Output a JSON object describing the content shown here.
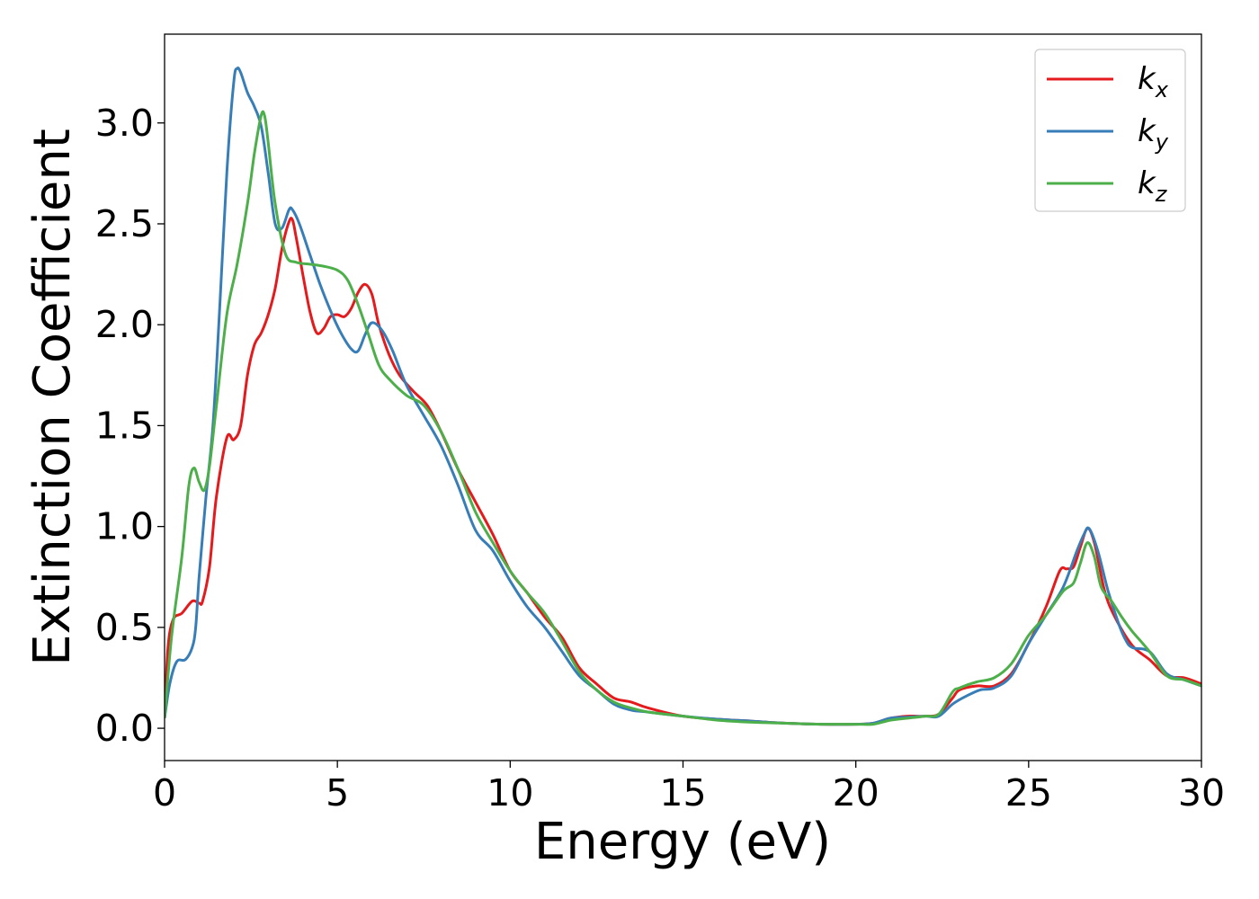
{
  "chart_data": {
    "type": "line",
    "title": "",
    "xlabel": "Energy (eV)",
    "ylabel": "Extinction Coefficient",
    "xlim": [
      0,
      30
    ],
    "ylim": [
      -0.16,
      3.44
    ],
    "xticks": [
      0,
      5,
      10,
      15,
      20,
      25,
      30
    ],
    "xtick_labels": [
      "0",
      "5",
      "10",
      "15",
      "20",
      "25",
      "30"
    ],
    "yticks": [
      0.0,
      0.5,
      1.0,
      1.5,
      2.0,
      2.5,
      3.0
    ],
    "ytick_labels": [
      "0.0",
      "0.5",
      "1.0",
      "1.5",
      "2.0",
      "2.5",
      "3.0"
    ],
    "grid": false,
    "legend_position": "top-right",
    "series": [
      {
        "name": "k",
        "subscript": "x",
        "color": "#e41a1c",
        "points": [
          [
            0,
            0.05
          ],
          [
            0.1,
            0.4
          ],
          [
            0.25,
            0.54
          ],
          [
            0.5,
            0.57
          ],
          [
            0.8,
            0.63
          ],
          [
            1.0,
            0.62
          ],
          [
            1.1,
            0.63
          ],
          [
            1.3,
            0.8
          ],
          [
            1.5,
            1.15
          ],
          [
            1.8,
            1.44
          ],
          [
            2.0,
            1.43
          ],
          [
            2.2,
            1.5
          ],
          [
            2.4,
            1.75
          ],
          [
            2.6,
            1.9
          ],
          [
            2.8,
            1.96
          ],
          [
            3.0,
            2.05
          ],
          [
            3.2,
            2.18
          ],
          [
            3.4,
            2.38
          ],
          [
            3.6,
            2.51
          ],
          [
            3.7,
            2.52
          ],
          [
            3.8,
            2.44
          ],
          [
            4.0,
            2.25
          ],
          [
            4.2,
            2.07
          ],
          [
            4.4,
            1.96
          ],
          [
            4.6,
            1.98
          ],
          [
            4.8,
            2.04
          ],
          [
            5.0,
            2.05
          ],
          [
            5.2,
            2.04
          ],
          [
            5.4,
            2.08
          ],
          [
            5.6,
            2.16
          ],
          [
            5.8,
            2.2
          ],
          [
            6.0,
            2.15
          ],
          [
            6.2,
            2.0
          ],
          [
            6.5,
            1.85
          ],
          [
            6.8,
            1.75
          ],
          [
            7.2,
            1.67
          ],
          [
            7.6,
            1.6
          ],
          [
            8.0,
            1.47
          ],
          [
            8.5,
            1.28
          ],
          [
            9.0,
            1.12
          ],
          [
            9.5,
            0.96
          ],
          [
            10.0,
            0.78
          ],
          [
            10.5,
            0.67
          ],
          [
            11.0,
            0.55
          ],
          [
            11.5,
            0.45
          ],
          [
            12.0,
            0.3
          ],
          [
            12.5,
            0.22
          ],
          [
            13.0,
            0.15
          ],
          [
            13.5,
            0.13
          ],
          [
            14.0,
            0.1
          ],
          [
            15.0,
            0.06
          ],
          [
            16.0,
            0.045
          ],
          [
            17.0,
            0.035
          ],
          [
            18.0,
            0.025
          ],
          [
            19.0,
            0.02
          ],
          [
            20.0,
            0.02
          ],
          [
            20.5,
            0.025
          ],
          [
            21.0,
            0.05
          ],
          [
            21.5,
            0.06
          ],
          [
            22.0,
            0.06
          ],
          [
            22.4,
            0.07
          ],
          [
            22.8,
            0.15
          ],
          [
            23.0,
            0.19
          ],
          [
            23.5,
            0.21
          ],
          [
            24.0,
            0.21
          ],
          [
            24.5,
            0.27
          ],
          [
            25.0,
            0.42
          ],
          [
            25.5,
            0.6
          ],
          [
            25.9,
            0.78
          ],
          [
            26.1,
            0.79
          ],
          [
            26.3,
            0.8
          ],
          [
            26.5,
            0.9
          ],
          [
            26.7,
            0.99
          ],
          [
            26.9,
            0.92
          ],
          [
            27.2,
            0.68
          ],
          [
            27.5,
            0.55
          ],
          [
            28.0,
            0.41
          ],
          [
            28.5,
            0.34
          ],
          [
            29.0,
            0.26
          ],
          [
            29.5,
            0.25
          ],
          [
            30.0,
            0.22
          ]
        ]
      },
      {
        "name": "k",
        "subscript": "y",
        "color": "#377eb8",
        "points": [
          [
            0,
            0.05
          ],
          [
            0.15,
            0.22
          ],
          [
            0.35,
            0.33
          ],
          [
            0.6,
            0.34
          ],
          [
            0.8,
            0.4
          ],
          [
            0.9,
            0.5
          ],
          [
            1.0,
            0.75
          ],
          [
            1.2,
            1.15
          ],
          [
            1.4,
            1.5
          ],
          [
            1.6,
            2.1
          ],
          [
            1.8,
            2.75
          ],
          [
            2.0,
            3.2
          ],
          [
            2.1,
            3.27
          ],
          [
            2.2,
            3.25
          ],
          [
            2.4,
            3.15
          ],
          [
            2.6,
            3.08
          ],
          [
            2.8,
            2.98
          ],
          [
            3.0,
            2.75
          ],
          [
            3.2,
            2.5
          ],
          [
            3.4,
            2.48
          ],
          [
            3.6,
            2.57
          ],
          [
            3.7,
            2.57
          ],
          [
            3.9,
            2.5
          ],
          [
            4.2,
            2.35
          ],
          [
            4.5,
            2.2
          ],
          [
            4.8,
            2.07
          ],
          [
            5.1,
            1.96
          ],
          [
            5.4,
            1.88
          ],
          [
            5.6,
            1.87
          ],
          [
            5.8,
            1.95
          ],
          [
            6.0,
            2.01
          ],
          [
            6.3,
            1.97
          ],
          [
            6.6,
            1.87
          ],
          [
            7.0,
            1.7
          ],
          [
            7.5,
            1.55
          ],
          [
            8.0,
            1.4
          ],
          [
            8.5,
            1.2
          ],
          [
            9.0,
            0.98
          ],
          [
            9.5,
            0.88
          ],
          [
            10.0,
            0.73
          ],
          [
            10.5,
            0.6
          ],
          [
            11.0,
            0.5
          ],
          [
            11.5,
            0.38
          ],
          [
            12.0,
            0.26
          ],
          [
            12.5,
            0.19
          ],
          [
            13.0,
            0.12
          ],
          [
            13.5,
            0.09
          ],
          [
            14.0,
            0.08
          ],
          [
            15.0,
            0.06
          ],
          [
            16.0,
            0.045
          ],
          [
            17.0,
            0.035
          ],
          [
            18.0,
            0.025
          ],
          [
            19.0,
            0.02
          ],
          [
            20.0,
            0.02
          ],
          [
            20.5,
            0.025
          ],
          [
            21.0,
            0.05
          ],
          [
            21.5,
            0.055
          ],
          [
            22.0,
            0.06
          ],
          [
            22.4,
            0.06
          ],
          [
            22.8,
            0.12
          ],
          [
            23.2,
            0.16
          ],
          [
            23.6,
            0.19
          ],
          [
            24.0,
            0.2
          ],
          [
            24.5,
            0.26
          ],
          [
            25.0,
            0.42
          ],
          [
            25.5,
            0.56
          ],
          [
            26.0,
            0.7
          ],
          [
            26.4,
            0.88
          ],
          [
            26.6,
            0.96
          ],
          [
            26.75,
            0.99
          ],
          [
            27.0,
            0.88
          ],
          [
            27.3,
            0.68
          ],
          [
            27.6,
            0.52
          ],
          [
            27.8,
            0.44
          ],
          [
            28.0,
            0.4
          ],
          [
            28.5,
            0.38
          ],
          [
            29.0,
            0.27
          ],
          [
            29.5,
            0.24
          ],
          [
            30.0,
            0.21
          ]
        ]
      },
      {
        "name": "k",
        "subscript": "z",
        "color": "#4daf4a",
        "points": [
          [
            0,
            0.05
          ],
          [
            0.2,
            0.45
          ],
          [
            0.5,
            0.85
          ],
          [
            0.7,
            1.2
          ],
          [
            0.85,
            1.29
          ],
          [
            1.0,
            1.22
          ],
          [
            1.15,
            1.18
          ],
          [
            1.3,
            1.3
          ],
          [
            1.5,
            1.6
          ],
          [
            1.8,
            2.05
          ],
          [
            2.1,
            2.3
          ],
          [
            2.4,
            2.6
          ],
          [
            2.6,
            2.85
          ],
          [
            2.8,
            3.04
          ],
          [
            2.9,
            3.03
          ],
          [
            3.0,
            2.9
          ],
          [
            3.2,
            2.6
          ],
          [
            3.5,
            2.35
          ],
          [
            3.8,
            2.31
          ],
          [
            4.2,
            2.3
          ],
          [
            4.6,
            2.29
          ],
          [
            5.0,
            2.27
          ],
          [
            5.3,
            2.22
          ],
          [
            5.6,
            2.1
          ],
          [
            5.9,
            1.95
          ],
          [
            6.2,
            1.8
          ],
          [
            6.5,
            1.73
          ],
          [
            7.0,
            1.65
          ],
          [
            7.5,
            1.6
          ],
          [
            8.0,
            1.47
          ],
          [
            8.5,
            1.28
          ],
          [
            9.0,
            1.07
          ],
          [
            9.5,
            0.92
          ],
          [
            10.0,
            0.78
          ],
          [
            10.5,
            0.67
          ],
          [
            11.0,
            0.57
          ],
          [
            11.5,
            0.43
          ],
          [
            12.0,
            0.28
          ],
          [
            12.5,
            0.19
          ],
          [
            13.0,
            0.13
          ],
          [
            13.5,
            0.1
          ],
          [
            14.0,
            0.08
          ],
          [
            15.0,
            0.06
          ],
          [
            16.0,
            0.04
          ],
          [
            17.0,
            0.03
          ],
          [
            18.0,
            0.025
          ],
          [
            19.0,
            0.02
          ],
          [
            20.0,
            0.02
          ],
          [
            20.5,
            0.02
          ],
          [
            21.0,
            0.04
          ],
          [
            21.5,
            0.05
          ],
          [
            22.0,
            0.06
          ],
          [
            22.4,
            0.07
          ],
          [
            22.8,
            0.18
          ],
          [
            23.0,
            0.2
          ],
          [
            23.5,
            0.23
          ],
          [
            24.0,
            0.25
          ],
          [
            24.5,
            0.32
          ],
          [
            25.0,
            0.46
          ],
          [
            25.5,
            0.56
          ],
          [
            26.0,
            0.68
          ],
          [
            26.3,
            0.72
          ],
          [
            26.5,
            0.82
          ],
          [
            26.7,
            0.92
          ],
          [
            26.9,
            0.85
          ],
          [
            27.1,
            0.7
          ],
          [
            27.4,
            0.63
          ],
          [
            27.7,
            0.55
          ],
          [
            28.0,
            0.48
          ],
          [
            28.5,
            0.38
          ],
          [
            29.0,
            0.26
          ],
          [
            29.5,
            0.24
          ],
          [
            30.0,
            0.21
          ]
        ]
      }
    ]
  }
}
